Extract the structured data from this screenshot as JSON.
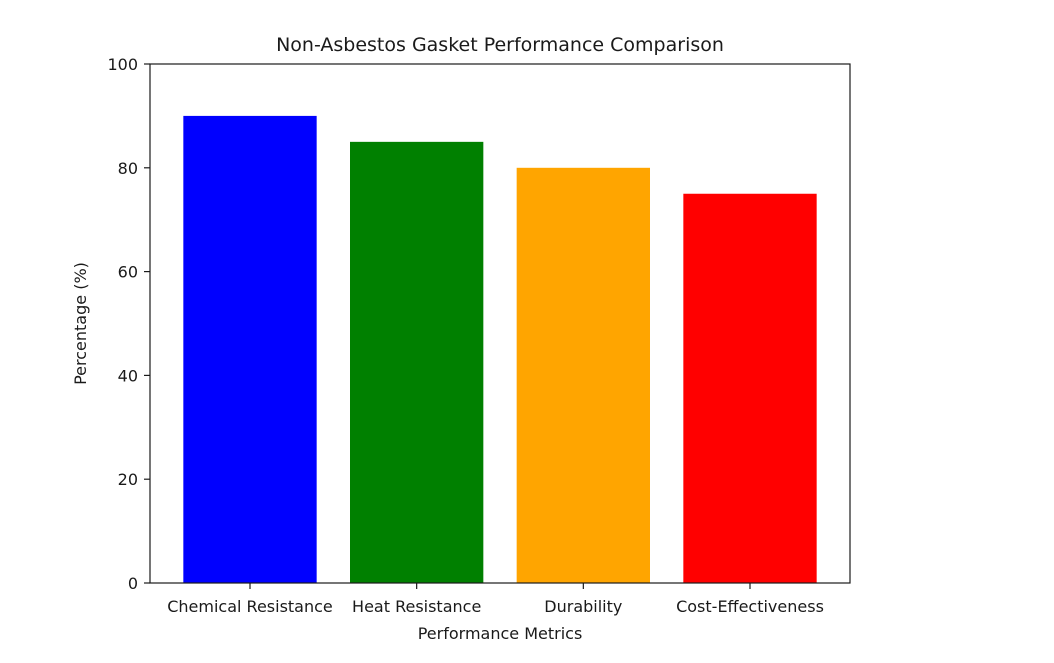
{
  "chart_data": {
    "type": "bar",
    "title": "Non-Asbestos Gasket Performance Comparison",
    "xlabel": "Performance Metrics",
    "ylabel": "Percentage (%)",
    "categories": [
      "Chemical Resistance",
      "Heat Resistance",
      "Durability",
      "Cost-Effectiveness"
    ],
    "values": [
      90,
      85,
      80,
      75
    ],
    "colors": [
      "#0000ff",
      "#008000",
      "#ffa500",
      "#ff0000"
    ],
    "ylim": [
      0,
      100
    ],
    "yticks": [
      0,
      20,
      40,
      60,
      80,
      100
    ],
    "grid": false,
    "legend": "none"
  }
}
